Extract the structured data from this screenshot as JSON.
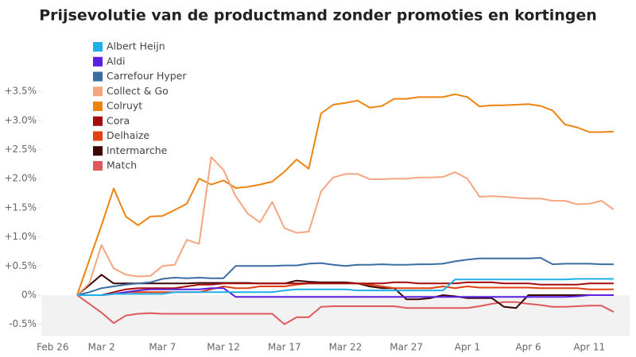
{
  "chart_data": {
    "type": "line",
    "title": "Prijsevolutie van de productmand zonder promoties en kortingen",
    "categories": [
      "Feb 26",
      null,
      null,
      null,
      "Mar 2",
      null,
      null,
      null,
      null,
      "Mar 7",
      null,
      null,
      null,
      null,
      "Mar 12",
      null,
      null,
      null,
      null,
      "Mar 17",
      null,
      null,
      null,
      null,
      "Mar 22",
      null,
      null,
      null,
      null,
      "Mar 27",
      null,
      null,
      null,
      null,
      "Apr 1",
      null,
      null,
      null,
      null,
      "Apr 6",
      null,
      null,
      null,
      null,
      "Apr 11",
      null,
      null
    ],
    "ylim": [
      -0.7,
      4.5
    ],
    "yticks": [
      {
        "value": -0.5,
        "label": "-0.5%"
      },
      {
        "value": 0,
        "label": "0%"
      },
      {
        "value": 0.5,
        "label": "+0.5%"
      },
      {
        "value": 1.0,
        "label": "+1.0%"
      },
      {
        "value": 1.5,
        "label": "+1.5%"
      },
      {
        "value": 2.0,
        "label": "+2.0%"
      },
      {
        "value": 2.5,
        "label": "+2.5%"
      },
      {
        "value": 3.0,
        "label": "+3.0%"
      },
      {
        "value": 3.5,
        "label": "+3.5%"
      }
    ],
    "legend": "top-left",
    "series": [
      {
        "name": "Albert Heijn",
        "color": "#1fb0ea",
        "values": [
          null,
          null,
          0,
          0,
          0,
          0.02,
          0.02,
          0.02,
          0.02,
          0.02,
          0.05,
          0.05,
          0.05,
          0.05,
          0.05,
          0.05,
          0.05,
          0.05,
          0.05,
          0.08,
          0.1,
          0.1,
          0.1,
          0.1,
          0.1,
          0.08,
          0.08,
          0.08,
          0.08,
          0.08,
          0.08,
          0.08,
          0.08,
          0.27,
          0.27,
          0.27,
          0.27,
          0.27,
          0.27,
          0.27,
          0.27,
          0.27,
          0.27,
          0.28,
          0.28,
          0.28,
          0.28
        ]
      },
      {
        "name": "Aldi",
        "color": "#5b1ee3",
        "values": [
          null,
          null,
          0,
          0,
          0,
          0.02,
          0.05,
          0.08,
          0.1,
          0.1,
          0.1,
          0.1,
          0.1,
          0.12,
          0.12,
          -0.03,
          -0.03,
          -0.03,
          -0.03,
          -0.03,
          -0.03,
          -0.03,
          -0.03,
          -0.03,
          -0.03,
          -0.03,
          -0.03,
          -0.03,
          -0.03,
          -0.03,
          -0.03,
          -0.03,
          -0.03,
          -0.03,
          -0.03,
          -0.03,
          -0.03,
          -0.03,
          -0.03,
          -0.03,
          -0.03,
          -0.03,
          -0.03,
          -0.02,
          0,
          0,
          0
        ]
      },
      {
        "name": "Carrefour Hyper",
        "color": "#3a6da3",
        "values": [
          null,
          null,
          0,
          0.05,
          0.12,
          0.15,
          0.18,
          0.2,
          0.22,
          0.28,
          0.3,
          0.29,
          0.3,
          0.29,
          0.29,
          0.5,
          0.5,
          0.5,
          0.5,
          0.51,
          0.51,
          0.54,
          0.55,
          0.52,
          0.5,
          0.52,
          0.52,
          0.53,
          0.52,
          0.52,
          0.53,
          0.53,
          0.54,
          0.58,
          0.61,
          0.63,
          0.63,
          0.63,
          0.63,
          0.63,
          0.64,
          0.53,
          0.54,
          0.54,
          0.54,
          0.53,
          0.53
        ]
      },
      {
        "name": "Collect & Go",
        "color": "#f5a57f",
        "values": [
          null,
          null,
          0,
          0.2,
          0.86,
          0.46,
          0.35,
          0.32,
          0.33,
          0.5,
          0.52,
          0.95,
          0.88,
          2.37,
          2.15,
          1.7,
          1.4,
          1.25,
          1.6,
          1.15,
          1.07,
          1.09,
          1.78,
          2.02,
          2.08,
          2.08,
          1.99,
          1.99,
          2.0,
          2.0,
          2.02,
          2.02,
          2.03,
          2.11,
          2.0,
          1.69,
          1.7,
          1.69,
          1.67,
          1.66,
          1.66,
          1.62,
          1.62,
          1.56,
          1.57,
          1.62,
          1.47
        ]
      },
      {
        "name": "Colruyt",
        "color": "#ee8410",
        "values": [
          null,
          null,
          0,
          0.6,
          1.2,
          1.83,
          1.35,
          1.2,
          1.35,
          1.36,
          1.46,
          1.57,
          2.0,
          1.9,
          1.97,
          1.84,
          1.86,
          1.9,
          1.95,
          2.12,
          2.33,
          2.17,
          3.12,
          3.27,
          3.3,
          3.34,
          3.22,
          3.25,
          3.37,
          3.37,
          3.4,
          3.4,
          3.4,
          3.45,
          3.4,
          3.24,
          3.26,
          3.26,
          3.27,
          3.28,
          3.25,
          3.17,
          2.93,
          2.88,
          2.8,
          2.8,
          2.81
        ]
      },
      {
        "name": "Cora",
        "color": "#a40d0d",
        "values": [
          null,
          null,
          0,
          0,
          0,
          0.05,
          0.1,
          0.12,
          0.12,
          0.12,
          0.12,
          0.15,
          0.18,
          0.18,
          0.2,
          0.2,
          0.2,
          0.2,
          0.2,
          0.2,
          0.2,
          0.2,
          0.2,
          0.2,
          0.2,
          0.2,
          0.2,
          0.2,
          0.22,
          0.22,
          0.2,
          0.2,
          0.2,
          0.2,
          0.22,
          0.22,
          0.22,
          0.2,
          0.2,
          0.2,
          0.18,
          0.18,
          0.18,
          0.18,
          0.2,
          0.2,
          0.2
        ]
      },
      {
        "name": "Delhaize",
        "color": "#e1400f",
        "values": [
          null,
          null,
          0,
          0,
          0,
          0.02,
          0.05,
          0.05,
          0.05,
          0.05,
          0.05,
          0.05,
          0.05,
          0.1,
          0.15,
          0.12,
          0.12,
          0.15,
          0.15,
          0.15,
          0.18,
          0.2,
          0.2,
          0.2,
          0.2,
          0.2,
          0.18,
          0.15,
          0.12,
          0.12,
          0.12,
          0.12,
          0.15,
          0.12,
          0.15,
          0.13,
          0.13,
          0.13,
          0.13,
          0.13,
          0.12,
          0.12,
          0.12,
          0.12,
          0.1,
          0.1,
          0.1
        ]
      },
      {
        "name": "Intermarche",
        "color": "#3b0505",
        "values": [
          null,
          null,
          0,
          0.17,
          0.35,
          0.2,
          0.2,
          0.2,
          0.2,
          0.2,
          0.2,
          0.2,
          0.21,
          0.21,
          0.21,
          0.21,
          0.21,
          0.2,
          0.2,
          0.2,
          0.25,
          0.23,
          0.22,
          0.22,
          0.22,
          0.2,
          0.15,
          0.12,
          0.12,
          -0.07,
          -0.07,
          -0.05,
          0,
          -0.02,
          -0.05,
          -0.05,
          -0.05,
          -0.2,
          -0.22,
          0,
          0,
          0,
          0,
          0,
          0,
          0,
          0
        ]
      },
      {
        "name": "Match",
        "color": "#e0595a",
        "values": [
          null,
          null,
          0,
          -0.15,
          -0.3,
          -0.48,
          -0.35,
          -0.32,
          -0.31,
          -0.32,
          -0.32,
          -0.32,
          -0.32,
          -0.32,
          -0.32,
          -0.32,
          -0.32,
          -0.32,
          -0.32,
          -0.5,
          -0.38,
          -0.38,
          -0.2,
          -0.19,
          -0.19,
          -0.19,
          -0.19,
          -0.19,
          -0.19,
          -0.22,
          -0.22,
          -0.22,
          -0.22,
          -0.22,
          -0.22,
          -0.19,
          -0.15,
          -0.12,
          -0.12,
          -0.15,
          -0.17,
          -0.2,
          -0.2,
          -0.19,
          -0.18,
          -0.18,
          -0.29
        ]
      }
    ]
  }
}
